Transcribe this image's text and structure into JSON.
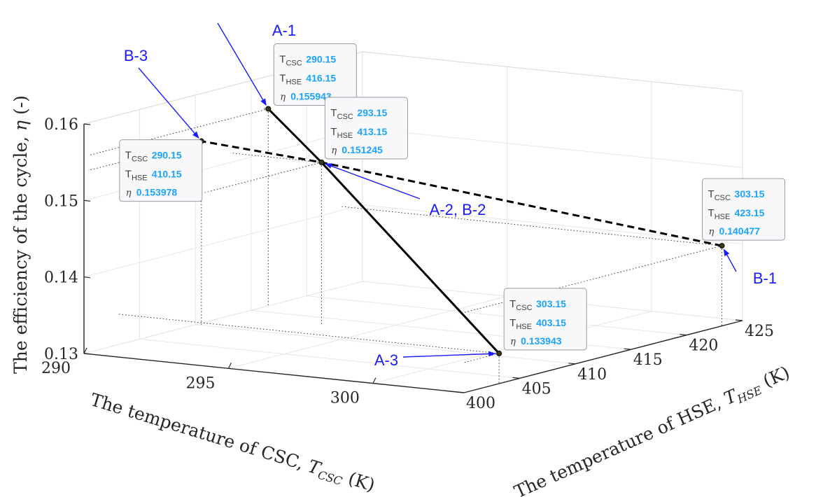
{
  "chart_data": {
    "type": "line3d",
    "xlabel_prefix": "The temperature of CSC, ",
    "xlabel_var": "T",
    "xlabel_sub": "CSC",
    "xlabel_suffix": " (K)",
    "ylabel_prefix": "The temperature of HSE, ",
    "ylabel_var": "T",
    "ylabel_sub": "HSE",
    "ylabel_suffix": " (K)",
    "zlabel_prefix": "The efficiency of the cycle, ",
    "zlabel_var": "η",
    "zlabel_suffix": " (-)",
    "xlim": [
      290,
      303.15
    ],
    "ylim": [
      400,
      425
    ],
    "zlim": [
      0.13,
      0.16
    ],
    "xticks": [
      "290",
      "295",
      "300"
    ],
    "yticks": [
      "400",
      "405",
      "410",
      "415",
      "420",
      "425"
    ],
    "zticks": [
      "0.13",
      "0.14",
      "0.15",
      "0.16"
    ],
    "grid": true,
    "series": [
      {
        "style": "solid",
        "points": [
          {
            "x": 290.15,
            "y": 416.15,
            "z": 0.155943
          },
          {
            "x": 293.15,
            "y": 413.15,
            "z": 0.151245
          },
          {
            "x": 303.15,
            "y": 403.15,
            "z": 0.133943
          }
        ]
      },
      {
        "style": "dashed",
        "points": [
          {
            "x": 303.15,
            "y": 423.15,
            "z": 0.140477
          },
          {
            "x": 293.15,
            "y": 413.15,
            "z": 0.151245
          },
          {
            "x": 290.15,
            "y": 410.15,
            "z": 0.153978
          }
        ]
      }
    ],
    "datatips": [
      {
        "key": "A-1",
        "x_key": "T",
        "x_sub": "CSC",
        "x": "290.15",
        "y_key": "T",
        "y_sub": "HSE",
        "y": "416.15",
        "z_key": "η",
        "z": "0.155943"
      },
      {
        "key": "A-2",
        "x_key": "T",
        "x_sub": "CSC",
        "x": "293.15",
        "y_key": "T",
        "y_sub": "HSE",
        "y": "413.15",
        "z_key": "η",
        "z": "0.151245"
      },
      {
        "key": "B-3",
        "x_key": "T",
        "x_sub": "CSC",
        "x": "290.15",
        "y_key": "T",
        "y_sub": "HSE",
        "y": "410.15",
        "z_key": "η",
        "z": "0.153978"
      },
      {
        "key": "B-1",
        "x_key": "T",
        "x_sub": "CSC",
        "x": "303.15",
        "y_key": "T",
        "y_sub": "HSE",
        "y": "423.15",
        "z_key": "η",
        "z": "0.140477"
      },
      {
        "key": "A-3",
        "x_key": "T",
        "x_sub": "CSC",
        "x": "303.15",
        "y_key": "T",
        "y_sub": "HSE",
        "y": "403.15",
        "z_key": "η",
        "z": "0.133943"
      }
    ],
    "annotations": [
      {
        "key": "A-1",
        "text": "A-1"
      },
      {
        "key": "B-3",
        "text": "B-3"
      },
      {
        "key": "A-2",
        "text": "A-2, B-2"
      },
      {
        "key": "B-1",
        "text": "B-1"
      },
      {
        "key": "A-3",
        "text": "A-3"
      }
    ]
  }
}
